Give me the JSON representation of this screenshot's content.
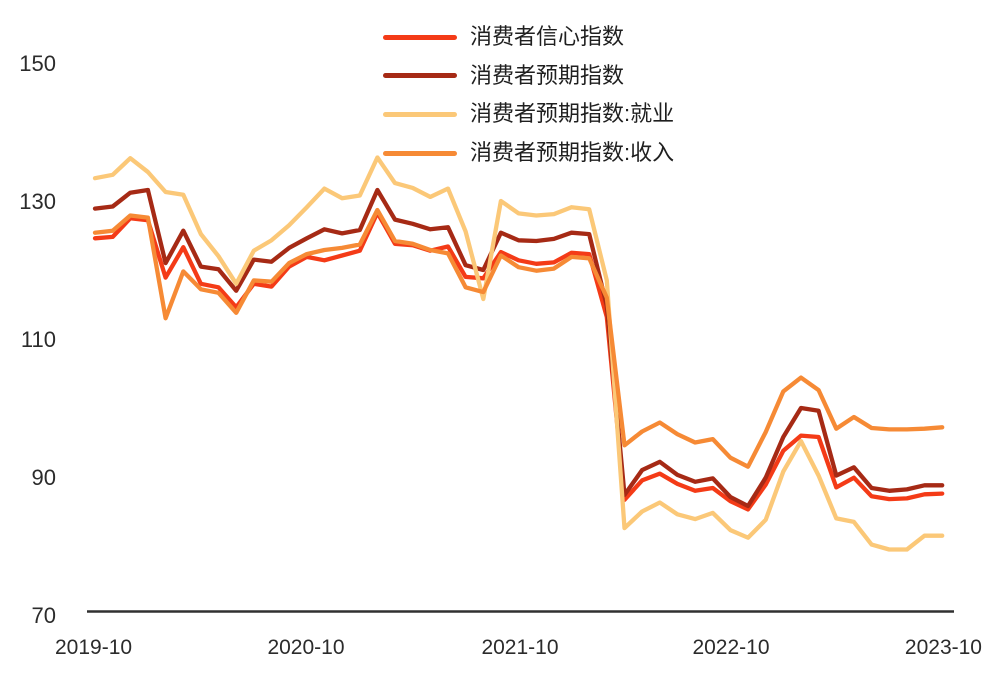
{
  "chart_data": {
    "type": "line",
    "title": "",
    "xlabel": "",
    "ylabel": "",
    "background": "#ffffff",
    "grid": false,
    "legend_position": "top-center",
    "ylim": [
      70,
      150
    ],
    "y_axis": {
      "tick_values": [
        150,
        130,
        110,
        90,
        70
      ]
    },
    "x_axis": {
      "tick_labels": [
        "2019-10",
        "2020-10",
        "2021-10",
        "2022-10",
        "2023-10"
      ]
    },
    "x": [
      "2019-10",
      "2019-11",
      "2019-12",
      "2020-01",
      "2020-02",
      "2020-03",
      "2020-04",
      "2020-05",
      "2020-06",
      "2020-07",
      "2020-08",
      "2020-09",
      "2020-10",
      "2020-11",
      "2020-12",
      "2021-01",
      "2021-02",
      "2021-03",
      "2021-04",
      "2021-05",
      "2021-06",
      "2021-07",
      "2021-08",
      "2021-09",
      "2021-10",
      "2021-11",
      "2021-12",
      "2022-01",
      "2022-02",
      "2022-03",
      "2022-04",
      "2022-05",
      "2022-06",
      "2022-07",
      "2022-08",
      "2022-09",
      "2022-10",
      "2022-11",
      "2022-12",
      "2023-01",
      "2023-02",
      "2023-03",
      "2023-04",
      "2023-05",
      "2023-06",
      "2023-07",
      "2023-08",
      "2023-09",
      "2023-10"
    ],
    "series": [
      {
        "key": "consumer-confidence-index",
        "name": "消费者信心指数",
        "color": "#F43B17",
        "values": [
          124.6,
          124.8,
          127.5,
          127.2,
          118.9,
          123.3,
          118.0,
          117.5,
          114.6,
          118.0,
          117.6,
          120.5,
          121.9,
          121.4,
          122.1,
          122.8,
          128.3,
          123.8,
          123.6,
          122.8,
          123.4,
          119.0,
          118.8,
          122.6,
          121.4,
          120.9,
          121.1,
          122.5,
          122.3,
          113.2,
          86.7,
          89.5,
          90.5,
          89.0,
          88.0,
          88.4,
          86.5,
          85.3,
          88.9,
          93.8,
          96.0,
          95.8,
          88.5,
          89.9,
          87.2,
          86.8,
          86.9,
          87.5,
          87.6
        ]
      },
      {
        "key": "consumer-expectation-index",
        "name": "消费者预期指数",
        "color": "#A62A15",
        "values": [
          128.9,
          129.2,
          131.2,
          131.6,
          121.0,
          125.7,
          120.5,
          120.1,
          117.0,
          121.5,
          121.2,
          123.2,
          124.6,
          125.9,
          125.3,
          125.8,
          131.6,
          127.3,
          126.7,
          125.9,
          126.2,
          120.7,
          120.0,
          125.4,
          124.3,
          124.2,
          124.5,
          125.4,
          125.2,
          114.8,
          87.4,
          91.0,
          92.2,
          90.3,
          89.3,
          89.8,
          87.1,
          85.8,
          89.9,
          95.8,
          100.0,
          99.6,
          90.2,
          91.4,
          88.4,
          88.0,
          88.2,
          88.8,
          88.8
        ]
      },
      {
        "key": "consumer-expectation-employment",
        "name": "消费者预期指数:就业",
        "color": "#FBC878",
        "values": [
          133.3,
          133.8,
          136.2,
          134.2,
          131.3,
          130.9,
          125.2,
          122.0,
          118.0,
          122.8,
          124.3,
          126.5,
          129.1,
          131.8,
          130.4,
          130.8,
          136.3,
          132.6,
          131.9,
          130.6,
          131.8,
          125.6,
          115.8,
          130.0,
          128.2,
          127.9,
          128.1,
          129.1,
          128.8,
          118.5,
          82.6,
          85.0,
          86.3,
          84.6,
          83.9,
          84.8,
          82.3,
          81.2,
          83.8,
          90.8,
          95.2,
          90.2,
          84.0,
          83.5,
          80.2,
          79.5,
          79.5,
          81.5,
          81.5
        ]
      },
      {
        "key": "consumer-expectation-income",
        "name": "消费者预期指数:收入",
        "color": "#F68A35",
        "values": [
          125.4,
          125.7,
          127.9,
          127.6,
          113.0,
          119.8,
          117.2,
          116.7,
          113.8,
          118.5,
          118.3,
          121.0,
          122.3,
          122.9,
          123.2,
          123.7,
          128.7,
          124.2,
          123.8,
          122.9,
          122.4,
          117.5,
          116.8,
          122.1,
          120.4,
          119.9,
          120.2,
          121.9,
          121.7,
          116.0,
          94.6,
          96.6,
          97.9,
          96.2,
          95.0,
          95.5,
          92.8,
          91.5,
          96.5,
          102.4,
          104.4,
          102.6,
          97.0,
          98.7,
          97.1,
          96.9,
          96.9,
          97.0,
          97.2
        ]
      }
    ]
  }
}
